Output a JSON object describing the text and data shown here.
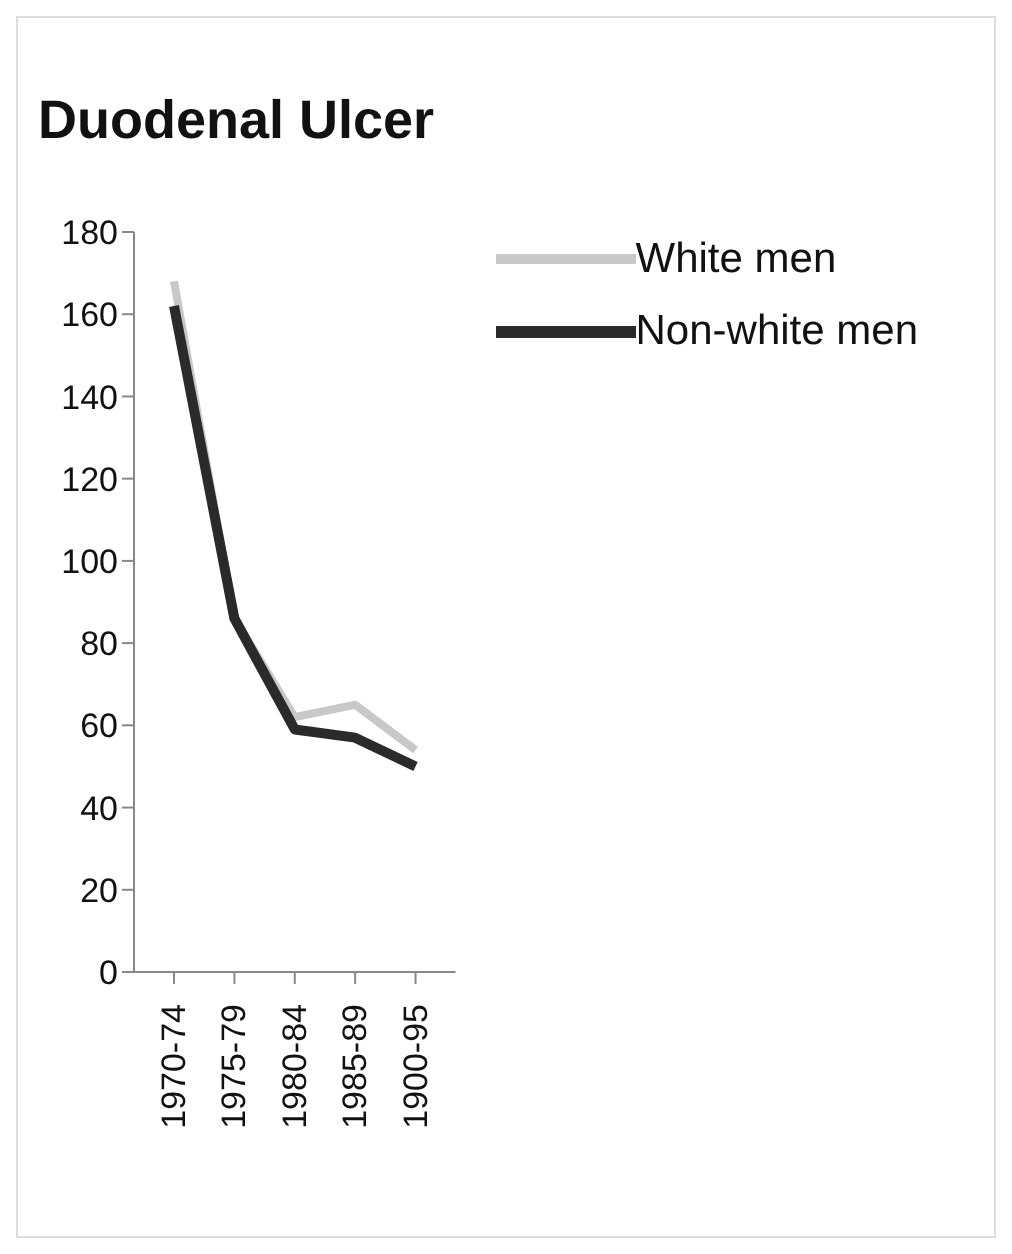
{
  "chart_data": {
    "type": "line",
    "title": "Duodenal Ulcer",
    "categories": [
      "1970-74",
      "1975-79",
      "1980-84",
      "1985-89",
      "1900-95"
    ],
    "series": [
      {
        "name": "White men",
        "color": "#c8c8c8",
        "values": [
          168,
          86,
          62,
          65,
          54
        ]
      },
      {
        "name": "Non-white men",
        "color": "#2a2a2a",
        "values": [
          162,
          86,
          59,
          57,
          50
        ]
      }
    ],
    "ylim": [
      0,
      180
    ],
    "yticks": [
      0,
      20,
      40,
      60,
      80,
      100,
      120,
      140,
      160,
      180
    ],
    "grid": false,
    "legend": "top right",
    "marker": "none",
    "line_style": "solid"
  }
}
